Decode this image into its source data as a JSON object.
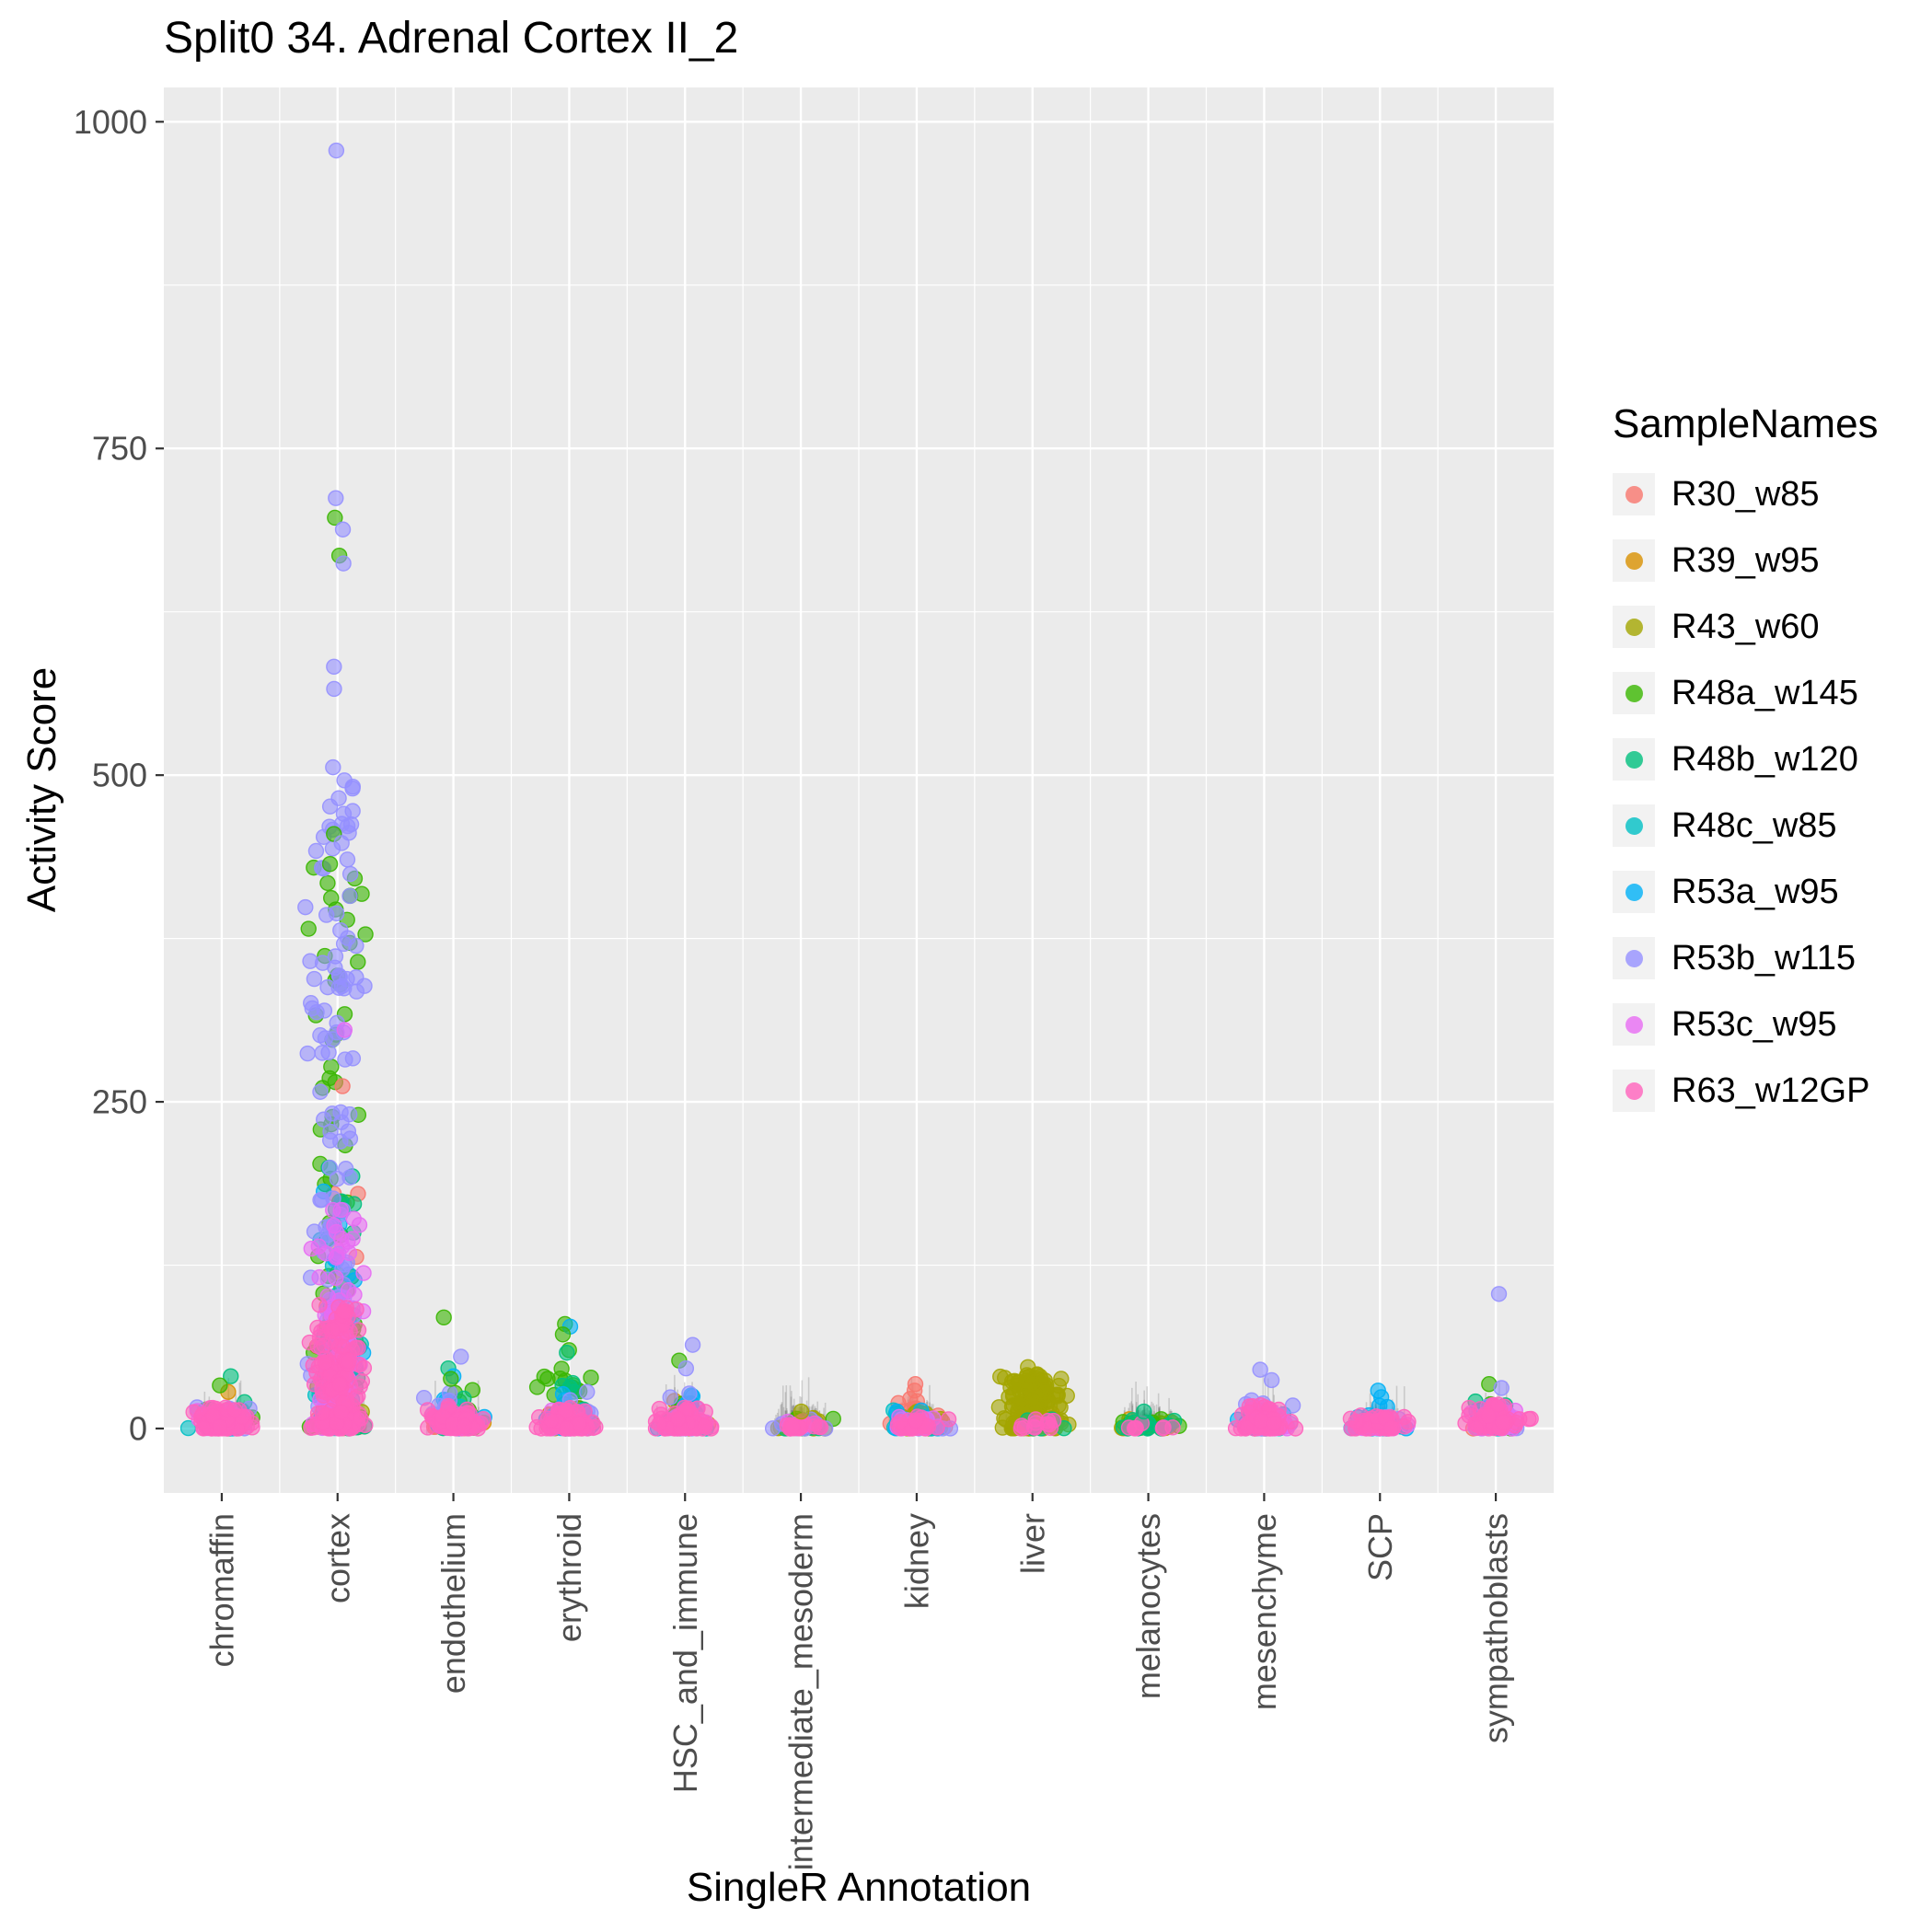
{
  "chart_data": {
    "type": "scatter",
    "variant": "jitter",
    "title": "Split0 34. Adrenal Cortex II_2",
    "xlabel": "SingleR Annotation",
    "ylabel": "Activity Score",
    "legend_title": "SampleNames",
    "ylim": [
      -49,
      1027
    ],
    "yticks": [
      0,
      250,
      500,
      750,
      1000
    ],
    "yticks_minor": [
      125,
      375,
      625,
      875
    ],
    "grid": "white-on-grey",
    "panel_color": "#EBEBEB",
    "tick_label_color": "#4D4D4D",
    "categories": [
      "chromaffin",
      "cortex",
      "endothelium",
      "erythroid",
      "HSC_and_immune",
      "intermediate_mesoderm",
      "kidney",
      "liver",
      "melanocytes",
      "mesenchyme",
      "SCP",
      "sympathoblasts"
    ],
    "samples": [
      {
        "name": "R30_w85",
        "color": "#F8766D"
      },
      {
        "name": "R39_w95",
        "color": "#D89000"
      },
      {
        "name": "R43_w60",
        "color": "#A3A500"
      },
      {
        "name": "R48a_w145",
        "color": "#39B600"
      },
      {
        "name": "R48b_w120",
        "color": "#00BF7D"
      },
      {
        "name": "R48c_w85",
        "color": "#00BFC4"
      },
      {
        "name": "R53a_w95",
        "color": "#00B0F6"
      },
      {
        "name": "R53b_w115",
        "color": "#9590FF"
      },
      {
        "name": "R53c_w95",
        "color": "#E76BF3"
      },
      {
        "name": "R63_w12GP",
        "color": "#FF62BC"
      }
    ],
    "clusters": [
      {
        "category": "chromaffin",
        "groups": [
          {
            "s": 0,
            "n": 8,
            "max": 15
          },
          {
            "s": 1,
            "n": 4,
            "max": 20
          },
          {
            "s": 3,
            "n": 8,
            "max": 22
          },
          {
            "s": 4,
            "n": 12,
            "max": 28
          },
          {
            "s": 5,
            "n": 8,
            "max": 14
          },
          {
            "s": 6,
            "n": 8,
            "max": 14
          },
          {
            "s": 7,
            "n": 14,
            "max": 18
          },
          {
            "s": 8,
            "n": 22,
            "max": 14
          },
          {
            "s": 9,
            "n": 80,
            "max": 16
          }
        ],
        "outliers": [
          {
            "s": 4,
            "y": 40
          },
          {
            "s": 1,
            "y": 28
          },
          {
            "s": 3,
            "y": 33
          }
        ]
      },
      {
        "category": "cortex",
        "groups": [
          {
            "s": 0,
            "n": 22,
            "max": 200,
            "skew": 1.8
          },
          {
            "s": 1,
            "n": 12,
            "max": 90
          },
          {
            "s": 2,
            "n": 8,
            "max": 70
          },
          {
            "s": 3,
            "n": 85,
            "max": 440,
            "skew": 1.5
          },
          {
            "s": 4,
            "n": 28,
            "max": 210,
            "skew": 1.8
          },
          {
            "s": 5,
            "n": 22,
            "max": 150,
            "skew": 1.8
          },
          {
            "s": 6,
            "n": 28,
            "max": 190,
            "skew": 1.8
          },
          {
            "s": 7,
            "n": 120,
            "max": 500,
            "skew": 1.4
          },
          {
            "s": 8,
            "n": 75,
            "max": 170,
            "skew": 1.8
          },
          {
            "s": 9,
            "n": 150,
            "max": 95,
            "skew": 1.6
          }
        ],
        "outliers": [
          {
            "s": 7,
            "y": 978
          },
          {
            "s": 7,
            "y": 712
          },
          {
            "s": 3,
            "y": 697
          },
          {
            "s": 7,
            "y": 688
          },
          {
            "s": 3,
            "y": 668
          },
          {
            "s": 7,
            "y": 662
          },
          {
            "s": 7,
            "y": 583
          },
          {
            "s": 7,
            "y": 566
          },
          {
            "s": 7,
            "y": 506
          },
          {
            "s": 7,
            "y": 496
          },
          {
            "s": 7,
            "y": 476
          },
          {
            "s": 3,
            "y": 455
          },
          {
            "s": 7,
            "y": 448
          },
          {
            "s": 3,
            "y": 432
          },
          {
            "s": 8,
            "y": 305
          },
          {
            "s": 0,
            "y": 262
          }
        ]
      },
      {
        "category": "endothelium",
        "groups": [
          {
            "s": 0,
            "n": 6,
            "max": 14
          },
          {
            "s": 1,
            "n": 4,
            "max": 12
          },
          {
            "s": 3,
            "n": 12,
            "max": 32
          },
          {
            "s": 4,
            "n": 10,
            "max": 26
          },
          {
            "s": 5,
            "n": 8,
            "max": 18
          },
          {
            "s": 6,
            "n": 12,
            "max": 24
          },
          {
            "s": 7,
            "n": 20,
            "max": 30
          },
          {
            "s": 8,
            "n": 18,
            "max": 14
          },
          {
            "s": 9,
            "n": 65,
            "max": 18
          }
        ],
        "outliers": [
          {
            "s": 3,
            "y": 85
          },
          {
            "s": 7,
            "y": 55
          },
          {
            "s": 4,
            "y": 46
          },
          {
            "s": 6,
            "y": 40
          },
          {
            "s": 3,
            "y": 38
          }
        ]
      },
      {
        "category": "erythroid",
        "groups": [
          {
            "s": 0,
            "n": 5,
            "max": 14
          },
          {
            "s": 1,
            "n": 5,
            "max": 18
          },
          {
            "s": 3,
            "n": 22,
            "max": 52,
            "skew": 1.6
          },
          {
            "s": 4,
            "n": 12,
            "max": 42
          },
          {
            "s": 5,
            "n": 8,
            "max": 18
          },
          {
            "s": 6,
            "n": 14,
            "max": 38
          },
          {
            "s": 7,
            "n": 12,
            "max": 30
          },
          {
            "s": 8,
            "n": 14,
            "max": 14
          },
          {
            "s": 9,
            "n": 55,
            "max": 16
          }
        ],
        "outliers": [
          {
            "s": 3,
            "y": 80
          },
          {
            "s": 6,
            "y": 78
          },
          {
            "s": 3,
            "y": 72
          },
          {
            "s": 3,
            "y": 60
          },
          {
            "s": 4,
            "y": 58
          }
        ]
      },
      {
        "category": "HSC_and_immune",
        "groups": [
          {
            "s": 0,
            "n": 5,
            "max": 12
          },
          {
            "s": 1,
            "n": 6,
            "max": 22
          },
          {
            "s": 3,
            "n": 9,
            "max": 24
          },
          {
            "s": 4,
            "n": 6,
            "max": 16
          },
          {
            "s": 5,
            "n": 8,
            "max": 14
          },
          {
            "s": 6,
            "n": 12,
            "max": 26
          },
          {
            "s": 7,
            "n": 14,
            "max": 28
          },
          {
            "s": 8,
            "n": 18,
            "max": 12
          },
          {
            "s": 9,
            "n": 65,
            "max": 16
          }
        ],
        "outliers": [
          {
            "s": 7,
            "y": 64
          },
          {
            "s": 3,
            "y": 52
          },
          {
            "s": 7,
            "y": 46
          }
        ]
      },
      {
        "category": "intermediate_mesoderm",
        "groups": [
          {
            "s": 2,
            "n": 28,
            "max": 9
          },
          {
            "s": 3,
            "n": 6,
            "max": 8
          },
          {
            "s": 4,
            "n": 8,
            "max": 7
          },
          {
            "s": 7,
            "n": 10,
            "max": 7
          },
          {
            "s": 8,
            "n": 8,
            "max": 6
          },
          {
            "s": 9,
            "n": 18,
            "max": 7
          }
        ],
        "outliers": [
          {
            "s": 2,
            "y": 13
          }
        ]
      },
      {
        "category": "kidney",
        "groups": [
          {
            "s": 0,
            "n": 18,
            "max": 24,
            "skew": 1.6
          },
          {
            "s": 1,
            "n": 6,
            "max": 12
          },
          {
            "s": 2,
            "n": 20,
            "max": 14
          },
          {
            "s": 5,
            "n": 12,
            "max": 16
          },
          {
            "s": 6,
            "n": 10,
            "max": 14
          },
          {
            "s": 7,
            "n": 10,
            "max": 10
          },
          {
            "s": 8,
            "n": 12,
            "max": 9
          },
          {
            "s": 9,
            "n": 22,
            "max": 10
          }
        ],
        "outliers": [
          {
            "s": 0,
            "y": 34
          },
          {
            "s": 0,
            "y": 29
          }
        ]
      },
      {
        "category": "liver",
        "groups": [
          {
            "s": 1,
            "n": 8,
            "max": 14
          },
          {
            "s": 2,
            "n": 170,
            "max": 42,
            "skew": 1.6
          },
          {
            "s": 4,
            "n": 6,
            "max": 8
          },
          {
            "s": 9,
            "n": 12,
            "max": 8
          }
        ],
        "outliers": [
          {
            "s": 2,
            "y": 47
          }
        ]
      },
      {
        "category": "melanocytes",
        "groups": [
          {
            "s": 1,
            "n": 8,
            "max": 9
          },
          {
            "s": 2,
            "n": 10,
            "max": 8
          },
          {
            "s": 3,
            "n": 10,
            "max": 9
          },
          {
            "s": 4,
            "n": 14,
            "max": 9
          },
          {
            "s": 9,
            "n": 8,
            "max": 6
          }
        ],
        "outliers": [
          {
            "s": 4,
            "y": 13
          }
        ]
      },
      {
        "category": "mesenchyme",
        "groups": [
          {
            "s": 0,
            "n": 5,
            "max": 10
          },
          {
            "s": 5,
            "n": 10,
            "max": 14
          },
          {
            "s": 6,
            "n": 12,
            "max": 18
          },
          {
            "s": 7,
            "n": 18,
            "max": 24
          },
          {
            "s": 8,
            "n": 22,
            "max": 16
          },
          {
            "s": 9,
            "n": 55,
            "max": 18
          }
        ],
        "outliers": [
          {
            "s": 7,
            "y": 45
          },
          {
            "s": 7,
            "y": 37
          }
        ]
      },
      {
        "category": "SCP",
        "groups": [
          {
            "s": 5,
            "n": 8,
            "max": 9
          },
          {
            "s": 6,
            "n": 14,
            "max": 18
          },
          {
            "s": 7,
            "n": 10,
            "max": 10
          },
          {
            "s": 8,
            "n": 10,
            "max": 8
          },
          {
            "s": 9,
            "n": 38,
            "max": 11
          }
        ],
        "outliers": [
          {
            "s": 6,
            "y": 29
          },
          {
            "s": 6,
            "y": 24
          }
        ]
      },
      {
        "category": "sympathoblasts",
        "groups": [
          {
            "s": 0,
            "n": 4,
            "max": 10
          },
          {
            "s": 3,
            "n": 9,
            "max": 28
          },
          {
            "s": 4,
            "n": 7,
            "max": 22
          },
          {
            "s": 6,
            "n": 9,
            "max": 18
          },
          {
            "s": 7,
            "n": 16,
            "max": 26
          },
          {
            "s": 8,
            "n": 18,
            "max": 14
          },
          {
            "s": 9,
            "n": 60,
            "max": 20
          }
        ],
        "outliers": [
          {
            "s": 7,
            "y": 103
          },
          {
            "s": 3,
            "y": 34
          },
          {
            "s": 7,
            "y": 31
          }
        ]
      }
    ],
    "rug": {
      "strokes_per_category": 240,
      "color": "#303030",
      "opacity": 0.18
    }
  }
}
